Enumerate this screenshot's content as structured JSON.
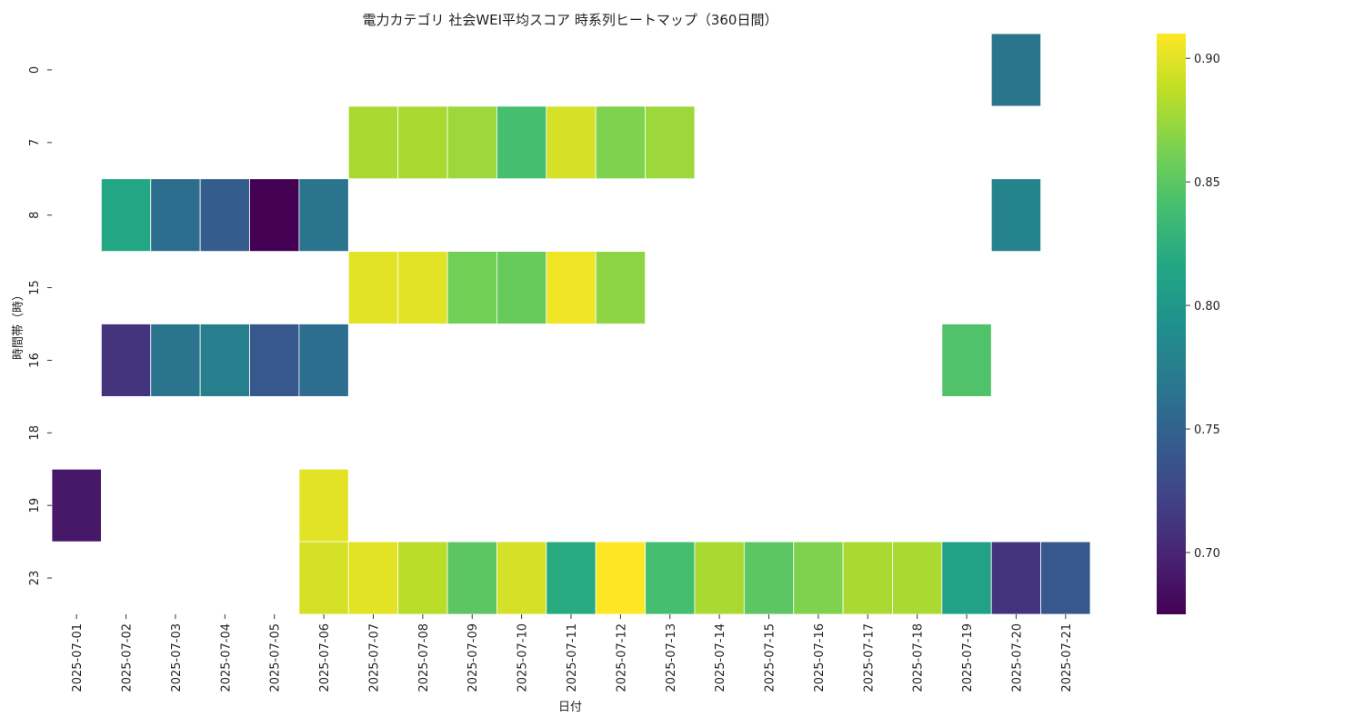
{
  "chart_data": {
    "type": "heatmap",
    "title": "電力カテゴリ 社会WEI平均スコア 時系列ヒートマップ（360日間）",
    "xlabel": "日付",
    "ylabel": "時間帯（時）",
    "x": [
      "2025-07-01",
      "2025-07-02",
      "2025-07-03",
      "2025-07-04",
      "2025-07-05",
      "2025-07-06",
      "2025-07-07",
      "2025-07-08",
      "2025-07-09",
      "2025-07-10",
      "2025-07-11",
      "2025-07-12",
      "2025-07-13",
      "2025-07-14",
      "2025-07-15",
      "2025-07-16",
      "2025-07-17",
      "2025-07-18",
      "2025-07-19",
      "2025-07-20",
      "2025-07-21"
    ],
    "y": [
      "0",
      "7",
      "8",
      "15",
      "16",
      "18",
      "19",
      "23"
    ],
    "values": [
      [
        null,
        null,
        null,
        null,
        null,
        null,
        null,
        null,
        null,
        null,
        null,
        null,
        null,
        null,
        null,
        null,
        null,
        null,
        null,
        0.765,
        null
      ],
      [
        null,
        null,
        null,
        null,
        null,
        null,
        0.88,
        0.88,
        0.875,
        0.84,
        0.895,
        0.865,
        0.875,
        null,
        null,
        null,
        null,
        null,
        null,
        null,
        null
      ],
      [
        null,
        0.815,
        0.76,
        0.745,
        0.675,
        0.765,
        null,
        null,
        null,
        null,
        null,
        null,
        null,
        null,
        null,
        null,
        null,
        null,
        null,
        0.78,
        null
      ],
      [
        null,
        null,
        null,
        null,
        null,
        null,
        0.9,
        0.9,
        0.86,
        0.855,
        0.905,
        0.87,
        null,
        null,
        null,
        null,
        null,
        null,
        null,
        null,
        null
      ],
      [
        null,
        0.71,
        0.765,
        0.775,
        0.74,
        0.76,
        null,
        null,
        null,
        null,
        null,
        null,
        null,
        null,
        null,
        null,
        null,
        null,
        0.845,
        null,
        null
      ],
      [
        null,
        null,
        null,
        null,
        null,
        null,
        null,
        null,
        null,
        null,
        null,
        null,
        null,
        null,
        null,
        null,
        null,
        null,
        null,
        null,
        null
      ],
      [
        0.69,
        null,
        null,
        null,
        null,
        0.9,
        null,
        null,
        null,
        null,
        null,
        null,
        null,
        null,
        null,
        null,
        null,
        null,
        null,
        null,
        null
      ],
      [
        null,
        null,
        null,
        null,
        null,
        0.895,
        0.9,
        0.885,
        0.85,
        0.895,
        0.82,
        0.91,
        0.84,
        0.88,
        0.85,
        0.865,
        0.88,
        0.88,
        0.81,
        0.71,
        0.74
      ]
    ],
    "colorbar": {
      "min": 0.675,
      "max": 0.91,
      "ticks": [
        "0.70",
        "0.75",
        "0.80",
        "0.85",
        "0.90"
      ],
      "colormap": "viridis"
    },
    "grid": false,
    "legend": "none"
  }
}
